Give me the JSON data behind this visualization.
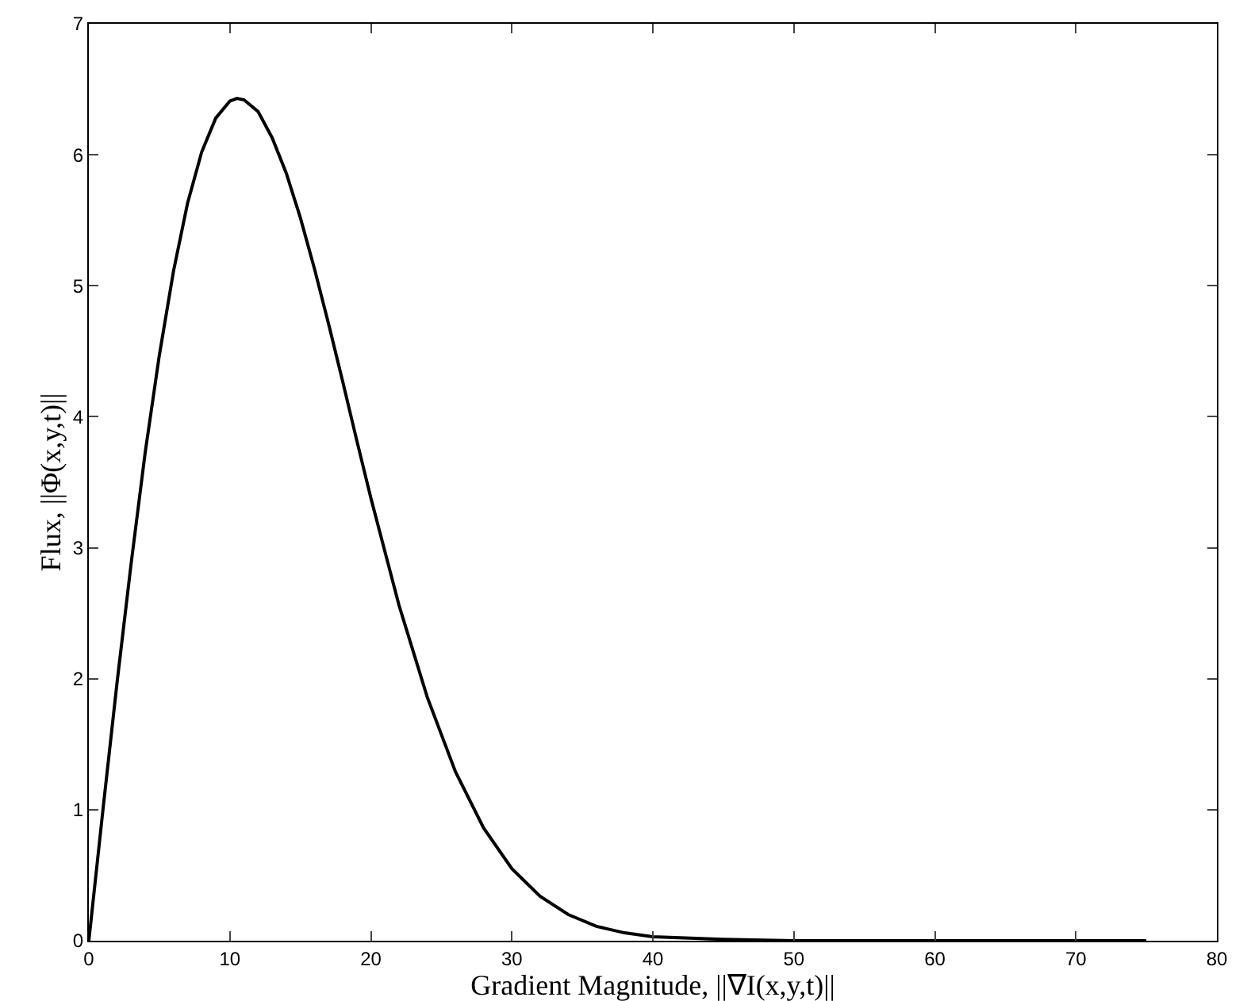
{
  "chart_data": {
    "type": "line",
    "xlabel": "Gradient Magnitude, ||∇I(x,y,t)||",
    "ylabel": "Flux, ||Φ(x,y,t)||",
    "x": [
      0,
      1,
      2,
      3,
      4,
      5,
      6,
      7,
      8,
      9,
      10,
      10.5,
      11,
      12,
      13,
      14,
      15,
      16,
      17,
      18,
      19,
      20,
      22,
      24,
      26,
      28,
      30,
      32,
      34,
      36,
      38,
      40,
      45,
      50,
      60,
      70,
      75
    ],
    "series": [
      {
        "color": "#000000",
        "values": [
          0,
          1.0,
          1.97,
          2.88,
          3.73,
          4.47,
          5.11,
          5.63,
          6.02,
          6.28,
          6.41,
          6.43,
          6.42,
          6.33,
          6.13,
          5.86,
          5.52,
          5.13,
          4.71,
          4.27,
          3.82,
          3.38,
          2.56,
          1.86,
          1.29,
          0.86,
          0.55,
          0.34,
          0.2,
          0.11,
          0.06,
          0.03,
          0.01,
          0,
          0,
          0,
          0
        ]
      }
    ],
    "xlim": [
      0,
      80
    ],
    "ylim": [
      0,
      7
    ],
    "xticks": [
      0,
      10,
      20,
      30,
      40,
      50,
      60,
      70,
      80
    ],
    "yticks": [
      0,
      1,
      2,
      3,
      4,
      5,
      6,
      7
    ],
    "grid": false,
    "marker": "none",
    "line_style": "solid"
  }
}
